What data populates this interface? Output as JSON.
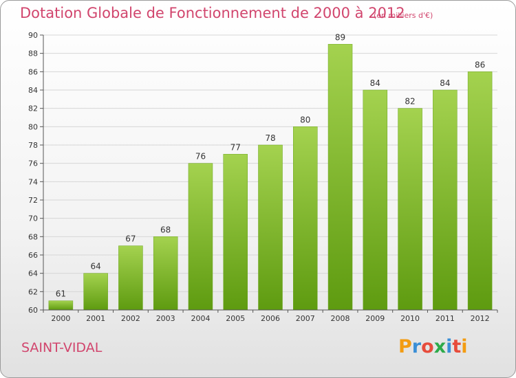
{
  "header": {
    "title": "Dotation Globale de Fonctionnement de 2000 à 2012",
    "unit": "(en milliers d'€)"
  },
  "footer": {
    "commune": "SAINT-VIDAL",
    "logo_text": "Proxiti",
    "logo_colors": [
      "#f39c12",
      "#3b8fd6",
      "#e74c3c",
      "#2eaa4a",
      "#3b8fd6",
      "#e74c3c",
      "#f39c12"
    ]
  },
  "colors": {
    "title": "#d1456d",
    "bar_top": "#a4d24f",
    "bar_bottom": "#5e9b10",
    "grid": "#d6d6d6"
  },
  "chart_data": {
    "type": "bar",
    "title": "Dotation Globale de Fonctionnement de 2000 à 2012",
    "subtitle": "(en milliers d'€)",
    "xlabel": "",
    "ylabel": "",
    "categories": [
      "2000",
      "2001",
      "2002",
      "2003",
      "2004",
      "2005",
      "2006",
      "2007",
      "2008",
      "2009",
      "2010",
      "2011",
      "2012"
    ],
    "values": [
      61,
      64,
      67,
      68,
      76,
      77,
      78,
      80,
      89,
      84,
      82,
      84,
      86
    ],
    "ylim": [
      60,
      90
    ],
    "yticks": [
      60,
      62,
      64,
      66,
      68,
      70,
      72,
      74,
      76,
      78,
      80,
      82,
      84,
      86,
      88,
      90
    ],
    "grid": true,
    "legend": "none"
  }
}
